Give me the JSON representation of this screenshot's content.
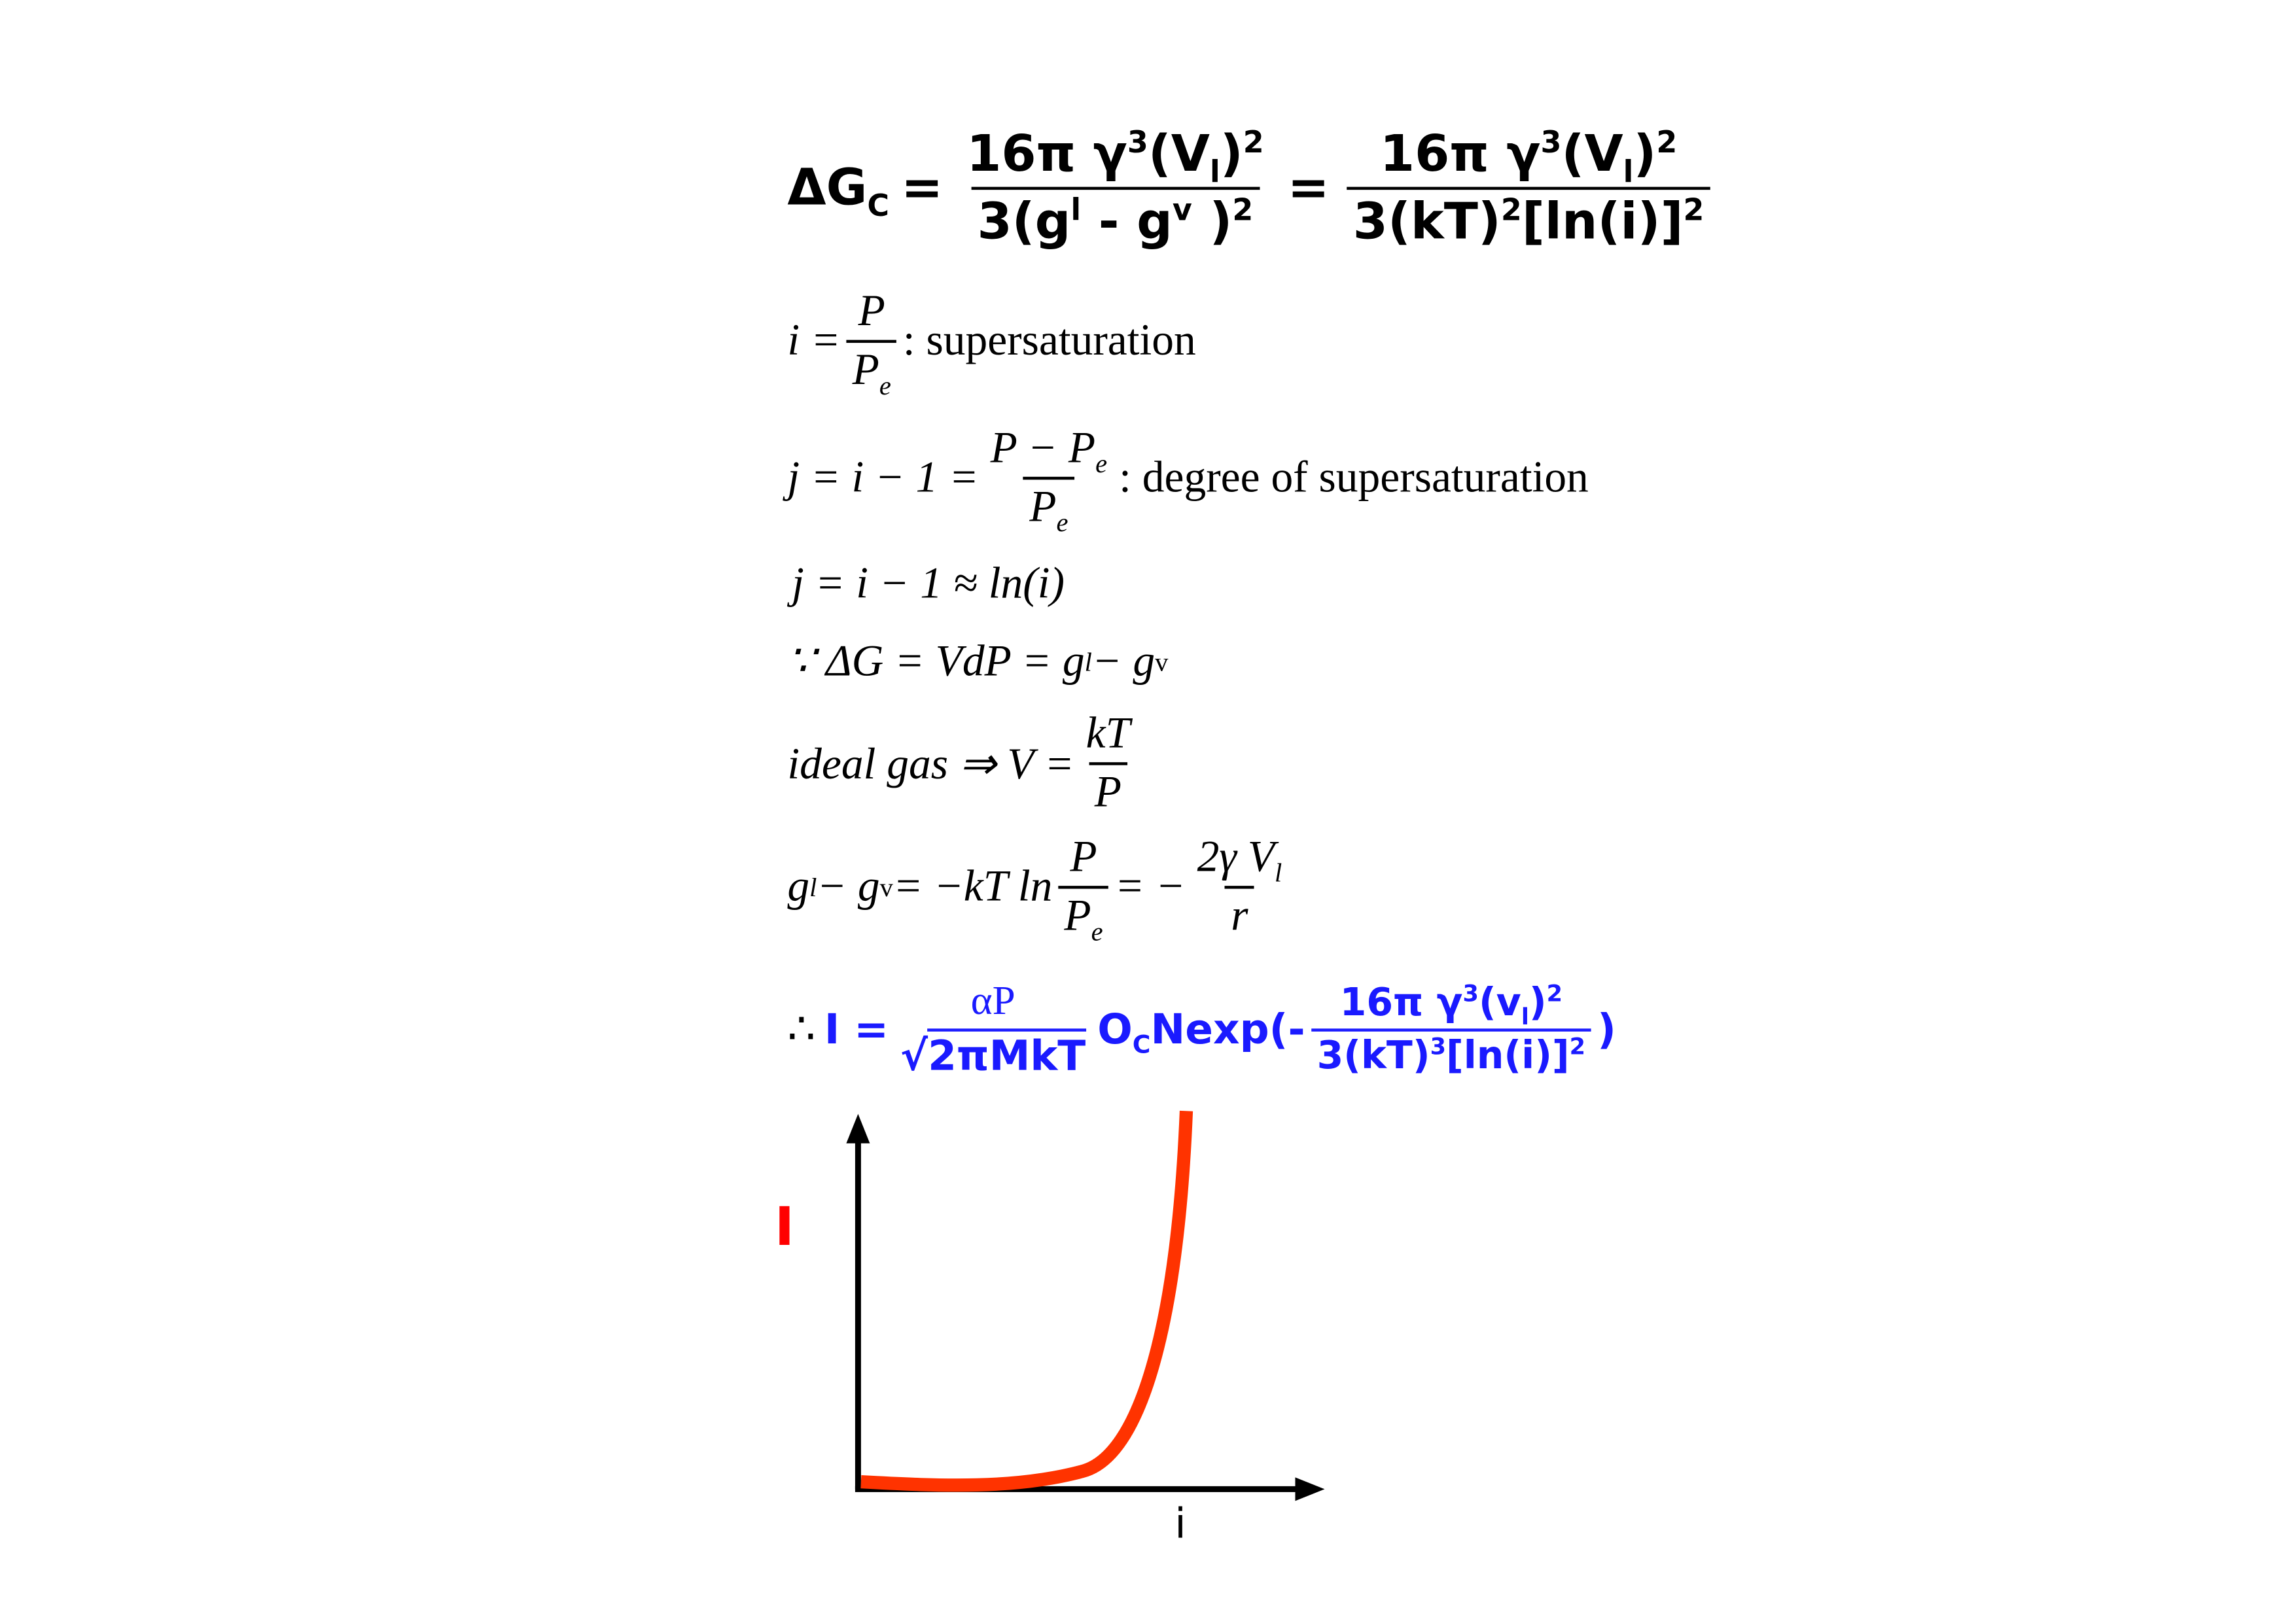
{
  "equations": {
    "eq1": {
      "lhs": "ΔG",
      "lhs_sub": "C",
      "num1": "16π γ",
      "num1_sup": "3",
      "num1_v": "(V",
      "num1_vsub": "l",
      "num1_close": ")",
      "num1_sup2": "2",
      "den1_a": "3(g",
      "den1_sup_l": "l",
      "den1_b": " - g",
      "den1_sup_v": "v",
      "den1_c": " )",
      "den1_sup2": "2",
      "den2_a": "3(kT)",
      "den2_sup": "2",
      "den2_b": "[ln(i)]",
      "den2_sup2": "2",
      "eq": "="
    },
    "eq2": {
      "lhs": "i =",
      "num": "P",
      "den": "P",
      "den_sub": "e",
      "text": ": supersaturation"
    },
    "eq3": {
      "lhs": "j = i − 1 =",
      "num": "P − P",
      "num_sub": "e",
      "den": "P",
      "den_sub": "e",
      "text": ": degree of supersaturation"
    },
    "eq4": {
      "text": "j = i − 1 ≈ ln(i)"
    },
    "eq5": {
      "a": "∵ ΔG = VdP = g",
      "sup_l": "l",
      "b": " − g",
      "sup_v": "v"
    },
    "eq6": {
      "lhs": "ideal gas ⇒ V =",
      "num": "kT",
      "den": "P"
    },
    "eq7": {
      "a": "g",
      "sup_l": "l",
      "b": " − g",
      "sup_v": "v",
      "c": " = −kT ln",
      "num": "P",
      "den": "P",
      "den_sub": "e",
      "d": "= −",
      "num2": "2γ  V",
      "num2_sub": "l",
      "den2": "r"
    },
    "eq8": {
      "therefore": "∴",
      "lhs": "I =",
      "num": "αP",
      "den": "2πMkT",
      "sqrt": "√",
      "mid": "O",
      "mid_sub": "C",
      "mid2": "Nexp(-",
      "num2": "16π γ",
      "num2_sup": "3",
      "num2_b": "(v",
      "num2_sub": "l",
      "num2_c": ")",
      "num2_sup2": "2",
      "den2_a": "3(kT)",
      "den2_sup": "3",
      "den2_b": "[ln(i)]",
      "den2_sup2": "2",
      "close": ")"
    }
  },
  "graph": {
    "y_label": "I",
    "x_label": "i",
    "curve_color": "#ff3300",
    "y_label_color": "#ff0000",
    "axis_color": "#000000"
  },
  "colors": {
    "highlight_equation": "#1a1aff"
  }
}
